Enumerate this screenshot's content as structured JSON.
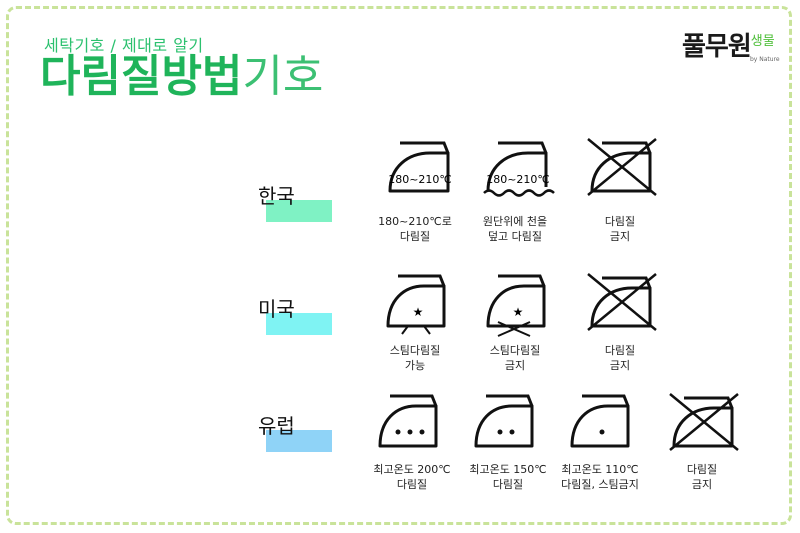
{
  "header": {
    "subtitle": "세탁기호 / 제대로 알기",
    "title_bold": "다림질방법",
    "title_light": "기호"
  },
  "brand": {
    "name": "풀무원",
    "sub": "생물",
    "tagline": "by Nature"
  },
  "colors": {
    "accent_green": "#1fb45a",
    "korea_bar": "#7ff2c4",
    "usa_bar": "#7ff3f3",
    "europe_bar": "#8fd3f7",
    "frame": "#c9e39a"
  },
  "rows": [
    {
      "label": "한국",
      "items": [
        {
          "icon": "iron-temperature-icon",
          "icon_text": "180~210℃",
          "caption_1": "180~210℃로",
          "caption_2": "다림질"
        },
        {
          "icon": "iron-temperature-cloth-icon",
          "icon_text": "180~210℃",
          "caption_1": "원단위에 천을",
          "caption_2": "덮고 다림질"
        },
        {
          "icon": "no-iron-icon",
          "caption_1": "다림질",
          "caption_2": "금지"
        }
      ]
    },
    {
      "label": "미국",
      "items": [
        {
          "icon": "steam-iron-icon",
          "caption_1": "스팀다림질",
          "caption_2": "가능"
        },
        {
          "icon": "no-steam-iron-icon",
          "caption_1": "스팀다림질",
          "caption_2": "금지"
        },
        {
          "icon": "no-iron-icon",
          "caption_1": "다림질",
          "caption_2": "금지"
        }
      ]
    },
    {
      "label": "유럽",
      "items": [
        {
          "icon": "iron-three-dots-icon",
          "caption_1": "최고온도 200℃",
          "caption_2": "다림질"
        },
        {
          "icon": "iron-two-dots-icon",
          "caption_1": "최고온도 150℃",
          "caption_2": "다림질"
        },
        {
          "icon": "iron-one-dot-icon",
          "caption_1": "최고온도 110℃",
          "caption_2": "다림질, 스팀금지"
        },
        {
          "icon": "no-iron-icon",
          "caption_1": "다림질",
          "caption_2": "금지"
        }
      ]
    }
  ]
}
